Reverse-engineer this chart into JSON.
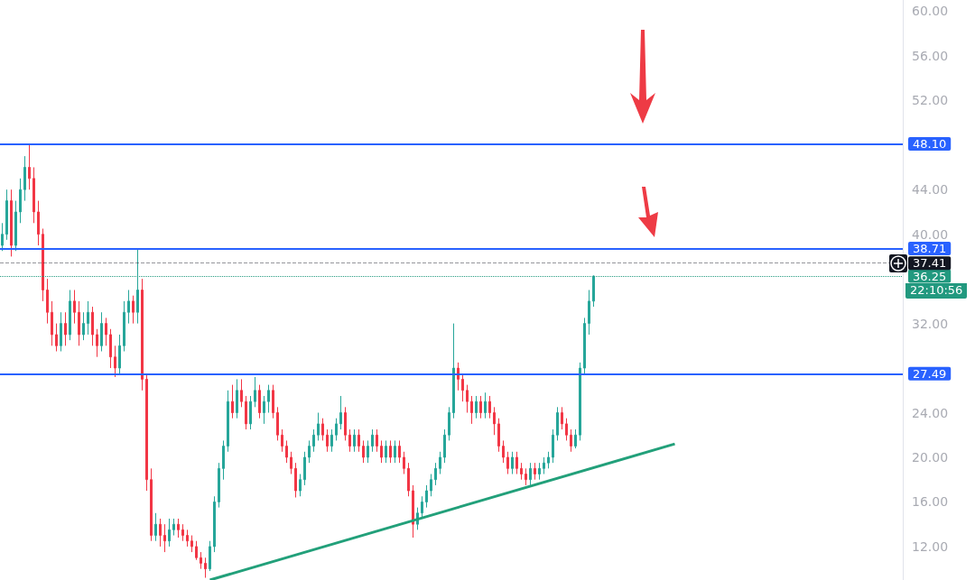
{
  "chart_data": {
    "type": "candlestick",
    "categories": [
      null,
      null,
      null,
      null,
      null,
      null,
      null,
      null,
      null,
      null,
      null,
      null,
      null,
      null,
      null,
      null,
      null,
      null,
      null,
      null,
      null,
      null,
      null,
      null,
      null,
      null,
      null,
      null,
      null,
      null,
      null,
      null,
      null,
      null,
      null,
      null,
      null,
      null,
      null,
      null,
      null,
      null,
      null,
      null,
      null,
      null,
      null,
      null,
      null,
      null,
      null,
      null,
      null,
      null,
      null,
      null,
      null,
      null,
      null,
      null,
      null,
      null,
      null,
      null,
      null,
      null,
      null,
      null,
      null,
      null,
      null,
      null,
      null,
      null,
      null,
      null,
      null,
      null,
      null,
      null,
      null,
      null,
      null,
      null,
      null,
      null,
      null,
      null,
      null,
      null,
      null,
      null,
      null,
      null,
      null,
      null,
      null,
      null,
      null,
      null,
      null,
      null,
      null,
      null,
      null,
      null,
      null,
      null,
      null,
      null,
      null,
      null,
      null,
      null,
      null,
      null,
      null,
      null,
      null,
      null,
      null,
      null,
      null,
      null,
      null,
      null,
      null,
      null,
      null,
      null,
      null,
      null,
      null,
      null,
      null,
      null,
      null,
      null,
      null,
      null,
      null,
      null,
      null,
      null,
      null,
      null,
      null,
      null,
      null,
      null,
      null,
      null,
      null,
      null,
      null,
      null,
      null,
      null,
      null,
      null,
      null,
      null,
      null,
      null,
      null,
      null,
      null,
      null,
      null,
      null,
      null,
      null,
      null,
      null,
      null,
      null,
      null,
      null,
      null,
      null,
      null,
      null,
      null,
      null,
      null,
      null,
      null,
      null,
      null,
      null,
      null,
      null,
      null,
      null,
      null,
      null,
      null,
      null,
      null,
      null
    ],
    "ohlc": [
      [
        39,
        41,
        38.5,
        40
      ],
      [
        40,
        44,
        39.5,
        43
      ],
      [
        43,
        44,
        38,
        39
      ],
      [
        39,
        43,
        38.5,
        42
      ],
      [
        42,
        45,
        41,
        44
      ],
      [
        44,
        47,
        43,
        46
      ],
      [
        46,
        48.1,
        44,
        45
      ],
      [
        45,
        46,
        41,
        42
      ],
      [
        42,
        43,
        39,
        40
      ],
      [
        40,
        40.5,
        34,
        35
      ],
      [
        35,
        36,
        32,
        33
      ],
      [
        33,
        34,
        30,
        31
      ],
      [
        31,
        32,
        29.5,
        30
      ],
      [
        30,
        33,
        29.5,
        32
      ],
      [
        32,
        33,
        30,
        31
      ],
      [
        31,
        35,
        30.5,
        34
      ],
      [
        34,
        35,
        32,
        33
      ],
      [
        33,
        34,
        30,
        31
      ],
      [
        31,
        33,
        30.5,
        32
      ],
      [
        32,
        34,
        31,
        33
      ],
      [
        33,
        33.5,
        30,
        31
      ],
      [
        31,
        31.5,
        29,
        30
      ],
      [
        30,
        33,
        29.5,
        32
      ],
      [
        32,
        32.5,
        30,
        31
      ],
      [
        31,
        31.5,
        28,
        29
      ],
      [
        29,
        30,
        27.2,
        28
      ],
      [
        28,
        31,
        27.5,
        30
      ],
      [
        30,
        34,
        29.5,
        33
      ],
      [
        33,
        35,
        32,
        34
      ],
      [
        34,
        34.5,
        32,
        33
      ],
      [
        33,
        38.71,
        32,
        35
      ],
      [
        35,
        36,
        26,
        27
      ],
      [
        27,
        27.5,
        17,
        18
      ],
      [
        18,
        19,
        12.5,
        13
      ],
      [
        13,
        15,
        12.5,
        14
      ],
      [
        14,
        14.5,
        12,
        13
      ],
      [
        13,
        14,
        11.5,
        12.5
      ],
      [
        12.5,
        14.5,
        12,
        13.5
      ],
      [
        13.5,
        14.5,
        13,
        14
      ],
      [
        14,
        14.5,
        12.8,
        13.5
      ],
      [
        13.5,
        14,
        12.5,
        13
      ],
      [
        13,
        13.5,
        12,
        12.5
      ],
      [
        12.5,
        13,
        11.5,
        12
      ],
      [
        12,
        12.5,
        10.8,
        11
      ],
      [
        11,
        11.5,
        10,
        10.5
      ],
      [
        10.5,
        11,
        9.2,
        10
      ],
      [
        10,
        12.5,
        9.8,
        12
      ],
      [
        12,
        16.5,
        11.5,
        16
      ],
      [
        16,
        19.5,
        15.5,
        19
      ],
      [
        19,
        21.5,
        18,
        21
      ],
      [
        21,
        26,
        20.5,
        25
      ],
      [
        25,
        26.5,
        23.5,
        24
      ],
      [
        24,
        27,
        23.5,
        26
      ],
      [
        26,
        27,
        24.5,
        25
      ],
      [
        25,
        25.5,
        22.5,
        23
      ],
      [
        23,
        25.5,
        22.5,
        25
      ],
      [
        25,
        27.2,
        24.5,
        26
      ],
      [
        26,
        26.5,
        23.5,
        24
      ],
      [
        24,
        25.5,
        23,
        25
      ],
      [
        25,
        26.5,
        24,
        26
      ],
      [
        26,
        26.5,
        23.5,
        24
      ],
      [
        24,
        24.5,
        21.5,
        22
      ],
      [
        22,
        22.5,
        20.5,
        21
      ],
      [
        21,
        21.5,
        19.5,
        20
      ],
      [
        20,
        20.5,
        18.5,
        19
      ],
      [
        19,
        19.5,
        16.4,
        17
      ],
      [
        17,
        18.5,
        16.5,
        18
      ],
      [
        18,
        20.5,
        17.5,
        20
      ],
      [
        20,
        21.5,
        19.5,
        21
      ],
      [
        21,
        22.5,
        20.5,
        22
      ],
      [
        22,
        24,
        21.5,
        23
      ],
      [
        23,
        23.5,
        21.5,
        22
      ],
      [
        22,
        22.5,
        20.5,
        21
      ],
      [
        21,
        22.5,
        20.5,
        22
      ],
      [
        22,
        23.5,
        21.5,
        23
      ],
      [
        23,
        25.5,
        22.5,
        24
      ],
      [
        24,
        24.5,
        21.5,
        22
      ],
      [
        22,
        22.5,
        20.5,
        21
      ],
      [
        21,
        22.5,
        20.5,
        22
      ],
      [
        22,
        22.5,
        20.5,
        21
      ],
      [
        21,
        21.5,
        19.5,
        20
      ],
      [
        20,
        21.5,
        19.5,
        21
      ],
      [
        21,
        22.5,
        20.5,
        22
      ],
      [
        22,
        22.5,
        20.5,
        21
      ],
      [
        21,
        21.5,
        19.5,
        20
      ],
      [
        20,
        21.5,
        19.5,
        21
      ],
      [
        21,
        21.5,
        19.5,
        20
      ],
      [
        20,
        21.5,
        19.5,
        21
      ],
      [
        21,
        21.5,
        19.5,
        20
      ],
      [
        20,
        20.5,
        18.5,
        19
      ],
      [
        19,
        19.5,
        16.5,
        17
      ],
      [
        17,
        17.5,
        12.8,
        14
      ],
      [
        14,
        15.5,
        13.5,
        15
      ],
      [
        15,
        16.5,
        14.5,
        16
      ],
      [
        16,
        17.5,
        15.5,
        17
      ],
      [
        17,
        18.5,
        16.5,
        18
      ],
      [
        18,
        19.5,
        17.5,
        19
      ],
      [
        19,
        20.5,
        18.5,
        20
      ],
      [
        20,
        22.5,
        19.5,
        22
      ],
      [
        22,
        24.5,
        21.5,
        24
      ],
      [
        24,
        32,
        23.5,
        28
      ],
      [
        28,
        28.5,
        26,
        27
      ],
      [
        27,
        27.5,
        25,
        26
      ],
      [
        26,
        26.5,
        24,
        25
      ],
      [
        25,
        25.5,
        23,
        24
      ],
      [
        24,
        25.5,
        23.5,
        25
      ],
      [
        25,
        25.5,
        23.5,
        24
      ],
      [
        24,
        25.8,
        23.5,
        25
      ],
      [
        25,
        25.5,
        23.5,
        24
      ],
      [
        24,
        24.5,
        22,
        23
      ],
      [
        23,
        23.5,
        20.5,
        21
      ],
      [
        21,
        21.5,
        19.5,
        20
      ],
      [
        20,
        20.5,
        18.5,
        19
      ],
      [
        19,
        20.5,
        18.5,
        20
      ],
      [
        20,
        20.5,
        18.5,
        19
      ],
      [
        19,
        19.5,
        18,
        18.5
      ],
      [
        18.5,
        19,
        17.5,
        18
      ],
      [
        18,
        19.5,
        17.5,
        19
      ],
      [
        19,
        19.5,
        18,
        18.5
      ],
      [
        18.5,
        19.5,
        18,
        19
      ],
      [
        19,
        20,
        18.5,
        19.5
      ],
      [
        19.5,
        20.5,
        19,
        20
      ],
      [
        20,
        22.5,
        19.5,
        22
      ],
      [
        22,
        24.5,
        21.5,
        24
      ],
      [
        24,
        24.5,
        22.5,
        23
      ],
      [
        23,
        23.5,
        21.5,
        22
      ],
      [
        22,
        22.5,
        20.5,
        21
      ],
      [
        21,
        22.5,
        20.8,
        22
      ],
      [
        22,
        28.5,
        21.5,
        28
      ],
      [
        28,
        32.5,
        27.5,
        32
      ],
      [
        32,
        35,
        31,
        34
      ],
      [
        34,
        36.3,
        33.5,
        36.25
      ],
      null,
      null,
      null,
      null,
      null,
      null,
      null,
      null,
      null,
      null,
      null,
      null,
      null,
      null,
      null,
      null,
      null,
      null,
      null,
      null,
      null,
      null,
      null,
      null,
      null,
      null,
      null,
      null,
      null,
      null,
      null,
      null,
      null,
      null,
      null,
      null,
      null,
      null,
      null,
      null,
      null,
      null,
      null,
      null,
      null,
      null,
      null,
      null,
      null,
      null,
      null,
      null,
      null,
      null,
      null,
      null,
      null,
      null,
      null,
      null,
      null,
      null,
      null,
      null,
      null,
      null,
      null,
      null
    ],
    "series": [
      {
        "type": "line",
        "color": "#22a07a",
        "values": [
          null,
          null,
          null,
          null,
          null,
          null,
          null,
          null,
          null,
          null,
          null,
          null,
          null,
          null,
          null,
          null,
          null,
          null,
          null,
          null,
          null,
          null,
          null,
          null,
          null,
          null,
          null,
          null,
          null,
          null,
          null,
          null,
          null,
          null,
          null,
          null,
          null,
          null,
          null,
          null,
          null,
          null,
          null,
          null,
          null,
          null,
          9.0,
          null,
          null,
          null,
          null,
          null,
          null,
          null,
          null,
          null,
          null,
          null,
          null,
          null,
          null,
          null,
          null,
          null,
          null,
          null,
          null,
          null,
          null,
          null,
          null,
          null,
          null,
          null,
          null,
          null,
          null,
          null,
          null,
          null,
          null,
          null,
          null,
          null,
          null,
          null,
          null,
          null,
          null,
          null,
          null,
          null,
          null,
          null,
          null,
          null,
          null,
          null,
          null,
          null,
          null,
          null,
          null,
          null,
          null,
          null,
          null,
          null,
          null,
          null,
          null,
          null,
          null,
          null,
          null,
          null,
          null,
          null,
          null,
          null,
          null,
          null,
          null,
          null,
          null,
          null,
          null,
          null,
          null,
          null,
          null,
          null,
          null,
          null,
          null,
          null,
          null,
          null,
          null,
          null,
          null,
          null,
          null,
          null,
          null,
          null,
          null,
          null,
          null,
          21.2,
          null,
          null,
          null,
          null,
          null,
          null,
          null,
          null,
          null,
          null,
          null,
          null,
          null,
          null,
          null,
          null,
          null,
          null,
          null,
          null,
          null,
          null,
          null,
          null,
          null,
          null,
          null,
          null,
          null,
          null,
          null,
          null,
          null,
          null,
          null,
          null,
          null,
          null,
          null,
          null,
          null,
          null,
          null,
          null,
          null,
          null,
          null,
          null,
          null,
          null
        ]
      }
    ],
    "ylim": [
      9,
      61
    ],
    "yticks": [
      {
        "value": 12,
        "label": "12.00"
      },
      {
        "value": 16,
        "label": "16.00"
      },
      {
        "value": 20,
        "label": "20.00"
      },
      {
        "value": 24,
        "label": "24.00"
      },
      {
        "value": 32,
        "label": "32.00"
      },
      {
        "value": 40,
        "label": "40.00"
      },
      {
        "value": 44,
        "label": "44.00"
      },
      {
        "value": 52,
        "label": "52.00"
      },
      {
        "value": 56,
        "label": "56.00"
      },
      {
        "value": 60,
        "label": "60.00"
      }
    ],
    "ref_lines": [
      {
        "axis": "y",
        "value": 48.1,
        "label": "48.10",
        "color": "#2962ff",
        "line_style": "solid"
      },
      {
        "axis": "y",
        "value": 38.71,
        "label": "38.71",
        "color": "#2962ff",
        "line_style": "solid"
      },
      {
        "axis": "y",
        "value": 27.49,
        "label": "27.49",
        "color": "#2962ff",
        "line_style": "solid"
      },
      {
        "axis": "y",
        "value": 36.25,
        "label": "36.25",
        "color": "#22997f",
        "line_style": "dotted"
      },
      {
        "axis": "y",
        "value": 37.41,
        "label": "37.41",
        "color": "#131722",
        "line_style": "dashed"
      }
    ],
    "annotations": [
      "22:10:56"
    ],
    "grid": false
  }
}
